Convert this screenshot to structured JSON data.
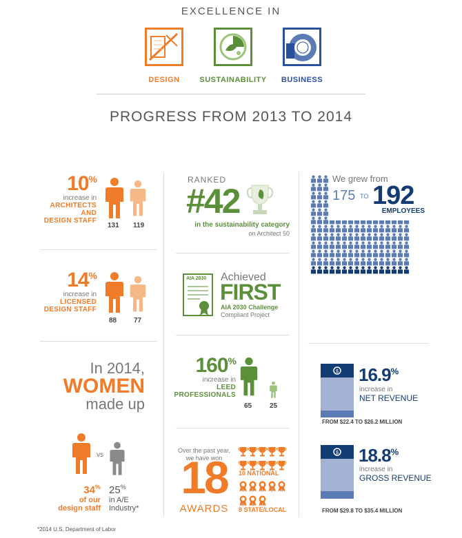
{
  "header": {
    "title": "EXCELLENCE IN",
    "pillars": [
      {
        "label": "DESIGN",
        "color": "#f07c2a"
      },
      {
        "label": "SUSTAINABILITY",
        "color": "#5b8f3a"
      },
      {
        "label": "BUSINESS",
        "color": "#2a4f9e"
      }
    ],
    "progress_title": "PROGRESS FROM 2013 TO 2014"
  },
  "architects": {
    "percent": "10",
    "pct_sign": "%",
    "line1": "increase in",
    "line2": "ARCHITECTS AND",
    "line3": "DESIGN STAFF",
    "new_count": "131",
    "old_count": "119"
  },
  "licensed": {
    "percent": "14",
    "pct_sign": "%",
    "line1": "increase in",
    "line2": "LICENSED",
    "line3": "DESIGN STAFF",
    "new_count": "88",
    "old_count": "77"
  },
  "women": {
    "line1": "In 2014,",
    "line2": "WOMEN",
    "line3": "made up",
    "vs": "vs",
    "our_pct": "34",
    "our_pct_sign": "%",
    "our_line1": "of our",
    "our_line2": "design staff",
    "ind_pct": "25",
    "ind_pct_sign": "%",
    "ind_line1": "in A/E",
    "ind_line2": "Industry*"
  },
  "ranked": {
    "label": "RANKED",
    "number": "#42",
    "line1": "in the sustainability category",
    "line2": "on Architect 50"
  },
  "aia": {
    "doc_label": "AIA 2030",
    "achieved": "Achieved",
    "first": "FIRST",
    "line1": "AIA 2030 Challenge",
    "line2": "Compliant Project"
  },
  "leed": {
    "percent": "160",
    "pct_sign": "%",
    "line1": "increase in",
    "line2": "LEED",
    "line3": "PROFESSIONALS",
    "new_count": "65",
    "old_count": "25"
  },
  "awards": {
    "intro1": "Over the past year,",
    "intro2": "we have won",
    "number": "18",
    "label": "AWARDS",
    "national": "10 NATIONAL",
    "state": "8 STATE/LOCAL",
    "national_count": 10,
    "state_count": 8
  },
  "employees": {
    "intro": "We grew from",
    "from": "175",
    "to_word": "TO",
    "to": "192",
    "label": "EMPLOYEES",
    "total_icons": 192,
    "highlight_icons": 17
  },
  "net": {
    "percent": "16.9",
    "pct_sign": "%",
    "line1": "increase in",
    "line2": "NET REVENUE",
    "range": "FROM $22.4 TO $26.2 MILLION",
    "fill_fraction": 0.169
  },
  "gross": {
    "percent": "18.8",
    "pct_sign": "%",
    "line1": "increase in",
    "line2": "GROSS REVENUE",
    "range": "FROM $29.8 TO $35.4 MILLION",
    "fill_fraction": 0.188
  },
  "footnote": "*2014 U.S. Department of Labor",
  "colors": {
    "orange": "#f07c2a",
    "peach": "#f5b887",
    "green": "#5b8f3a",
    "light_green": "#9cc37a",
    "navy": "#123c73",
    "blue": "#5b7bb5",
    "gray": "#8a8a8a"
  }
}
